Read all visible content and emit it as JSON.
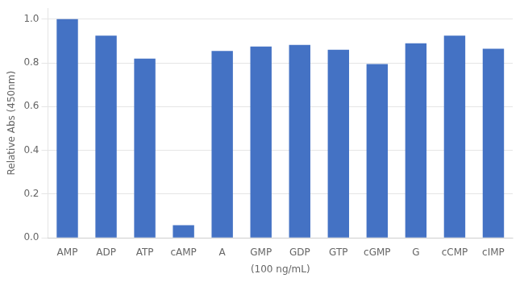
{
  "chart_data": {
    "type": "bar",
    "categories": [
      "AMP",
      "ADP",
      "ATP",
      "cAMP",
      "A",
      "GMP",
      "GDP",
      "GTP",
      "cGMP",
      "G",
      "cCMP",
      "cIMP"
    ],
    "values": [
      1.0,
      0.925,
      0.82,
      0.058,
      0.855,
      0.875,
      0.882,
      0.86,
      0.795,
      0.89,
      0.925,
      0.865
    ],
    "color": "#4472C4",
    "ylabel": "Relative Abs (450nm)",
    "xlabel": "(100 ng/mL)",
    "ylim": [
      0,
      1.05
    ],
    "yticks": [
      {
        "value": 0,
        "label": "0.0"
      },
      0.2,
      0.4,
      0.6,
      0.8,
      {
        "value": 1.0,
        "label": "1.0"
      }
    ],
    "grid": true
  }
}
